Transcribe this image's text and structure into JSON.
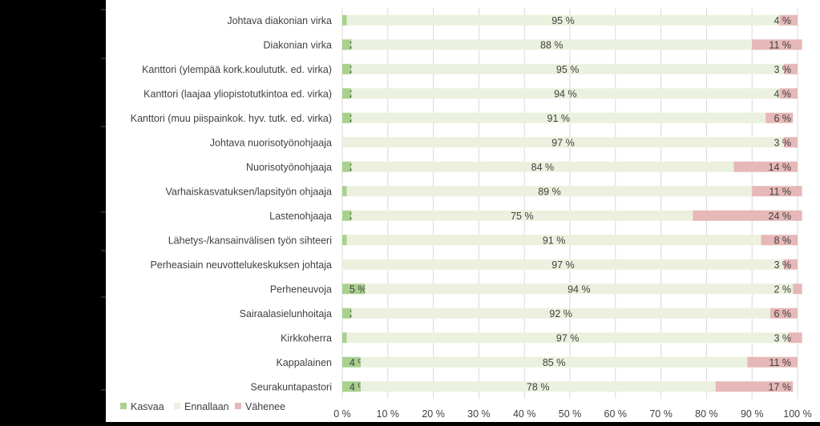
{
  "chart_data": {
    "type": "bar",
    "orientation": "horizontal",
    "stacked": true,
    "categories": [
      "Johtava diakonian virka",
      "Diakonian virka",
      "Kanttori (ylempää kork.koulututk. ed. virka)",
      "Kanttori (laajaa yliopistotutkintoa ed. virka)",
      "Kanttori (muu piispainkok. hyv. tutk. ed. virka)",
      "Johtava nuorisotyönohjaaja",
      "Nuorisotyönohjaaja",
      "Varhaiskasvatuksen/lapsityön ohjaaja",
      "Lastenohjaaja",
      "Lähetys-/kansainvälisen työn sihteeri",
      "Perheasiain neuvottelukeskuksen johtaja",
      "Perheneuvoja",
      "Sairaalasielunhoitaja",
      "Kirkkoherra",
      "Kappalainen",
      "Seurakuntapastori"
    ],
    "series": [
      {
        "name": "Kasvaa",
        "color": "#a9d18e",
        "values": [
          1,
          2,
          2,
          2,
          2,
          0,
          2,
          1,
          2,
          1,
          0,
          5,
          2,
          1,
          4,
          4
        ]
      },
      {
        "name": "Ennallaan",
        "color": "#ebf1de",
        "values": [
          95,
          88,
          95,
          94,
          91,
          97,
          84,
          89,
          75,
          91,
          97,
          94,
          92,
          97,
          85,
          78
        ]
      },
      {
        "name": "Vähenee",
        "color": "#e6b8b7",
        "values": [
          4,
          11,
          3,
          4,
          6,
          3,
          14,
          11,
          24,
          8,
          3,
          2,
          6,
          3,
          11,
          17
        ]
      }
    ],
    "value_labels": {
      "Kasvaa": [
        "1 %",
        "2 %",
        "2 %",
        "2 %",
        "2 %",
        "0 %",
        "2 %",
        "1 %",
        "2 %",
        "1 %",
        "0 %",
        "5 %",
        "2 %",
        "1 %",
        "4 %",
        "4 %"
      ],
      "Ennallaan": [
        "95 %",
        "88 %",
        "95 %",
        "94 %",
        "91 %",
        "97 %",
        "84 %",
        "89 %",
        "75 %",
        "91 %",
        "97 %",
        "94 %",
        "92 %",
        "97 %",
        "85 %",
        "78 %"
      ],
      "Vähenee": [
        "4 %",
        "11 %",
        "3 %",
        "4 %",
        "6 %",
        "3 %",
        "14 %",
        "11 %",
        "24 %",
        "8 %",
        "3 %",
        "2 %",
        "6 %",
        "3 %",
        "11 %",
        "17 %"
      ]
    },
    "xlim": [
      0,
      100
    ],
    "x_ticks": [
      "0 %",
      "10 %",
      "20 %",
      "30 %",
      "40 %",
      "50 %",
      "60 %",
      "70 %",
      "80 %",
      "90 %",
      "100 %"
    ],
    "grid": true,
    "legend": {
      "position": "bottom-left",
      "entries": [
        "Kasvaa",
        "Ennallaan",
        "Vähenee"
      ]
    },
    "title": "",
    "xlabel": "",
    "ylabel": ""
  }
}
